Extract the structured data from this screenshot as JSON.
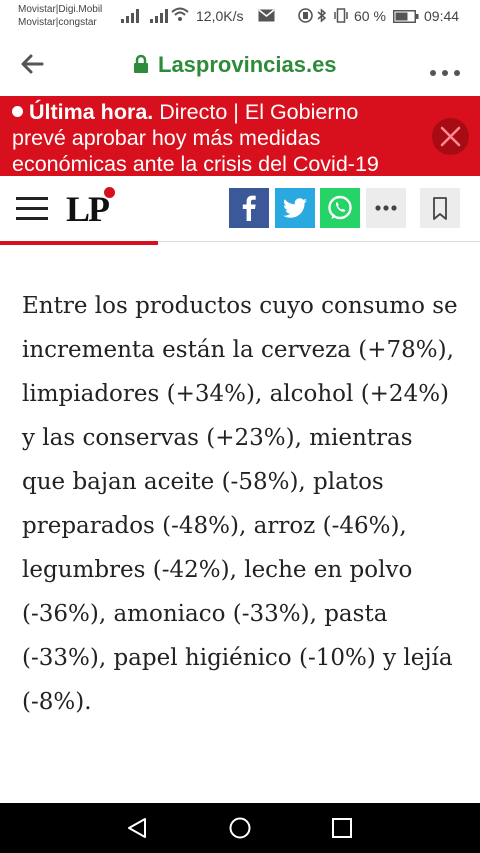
{
  "status_bar": {
    "carrier_1": "Movistar|Digi.Mobil",
    "carrier_2": "Movistar|congstar",
    "speed": "12,0K/s",
    "battery": "60 %",
    "time": "09:44"
  },
  "browser": {
    "url": "Lasprovincias.es",
    "icons": [
      "back-arrow-icon",
      "lock-icon",
      "menu-dots-icon"
    ]
  },
  "breaking": {
    "label": "Última hora.",
    "text": " Directo | El Gobierno prevé aprobar hoy más medidas económicas ante la crisis del Covid-19",
    "close_icon": "close-icon"
  },
  "site_header": {
    "logo": "LP",
    "share_icons": [
      "facebook-icon",
      "twitter-icon",
      "whatsapp-icon",
      "more-icon",
      "bookmark-icon"
    ],
    "read_progress": 0.33
  },
  "article": {
    "paragraph": "Entre los productos cuyo consumo se incrementa están la cerveza (+78%), limpiadores (+34%), alcohol (+24%) y las conservas (+23%), mientras que bajan aceite (-58%), platos preparados (-48%), arroz (-46%), legumbres (-42%), leche en polvo (-36%), amoniaco (-33%), pasta (-33%), papel higiénico (-10%) y lejía (-8%)."
  },
  "colors": {
    "brand_red": "#d80f1c",
    "url_green": "#2e8b3a",
    "facebook": "#3b5998",
    "twitter": "#2aa9e0",
    "whatsapp": "#25d366"
  }
}
